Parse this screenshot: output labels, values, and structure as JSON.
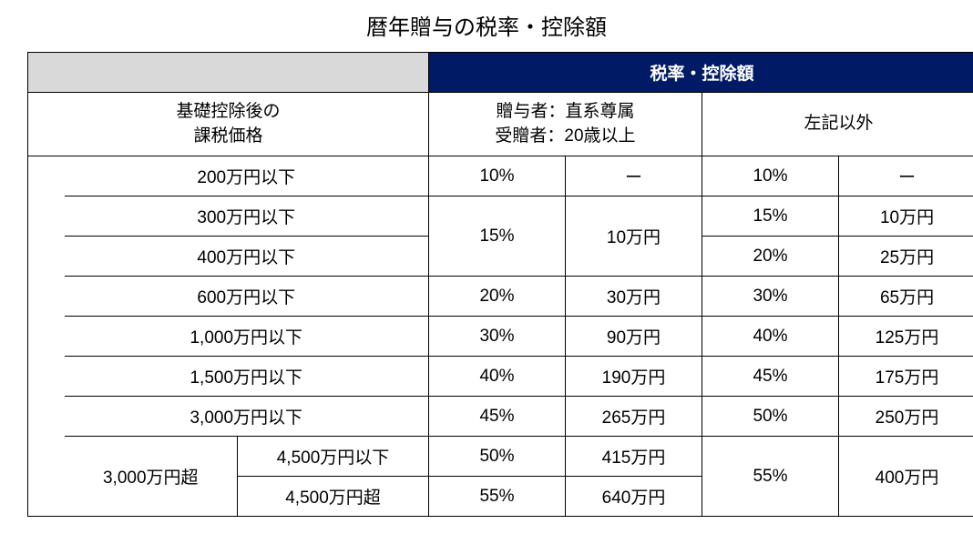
{
  "title": "暦年贈与の税率・控除額",
  "colors": {
    "header_bg": "#001a66",
    "header_fg": "#ffffff",
    "blank_bg": "#d9d9d9",
    "border": "#000000",
    "text": "#000000",
    "background": "#ffffff"
  },
  "typography": {
    "title_fontsize": 24,
    "cell_fontsize": 19,
    "font_family": "Hiragino Kaku Gothic ProN, Yu Gothic, Meiryo, sans-serif"
  },
  "headers": {
    "main_right": "税率・控除額",
    "left_sub_line1": "基礎控除後の",
    "left_sub_line2": "課税価格",
    "mid_sub_line1": "贈与者：直系尊属",
    "mid_sub_line2": "受贈者：20歳以上",
    "right_sub": "左記以外"
  },
  "brackets": {
    "b200": "200万円以下",
    "b300": "300万円以下",
    "b400": "400万円以下",
    "b600": "600万円以下",
    "b1000": "1,000万円以下",
    "b1500": "1,500万円以下",
    "b3000": "3,000万円以下",
    "over3000": "3,000万円超",
    "b4500": "4,500万円以下",
    "over4500": "4,500万円超"
  },
  "dash": "ー",
  "direct": {
    "r200": "10%",
    "d200": "ー",
    "r300_400": "15%",
    "d300_400": "10万円",
    "r600": "20%",
    "d600": "30万円",
    "r1000": "30%",
    "d1000": "90万円",
    "r1500": "40%",
    "d1500": "190万円",
    "r3000": "45%",
    "d3000": "265万円",
    "r4500": "50%",
    "d4500": "415万円",
    "rOver4500": "55%",
    "dOver4500": "640万円"
  },
  "other": {
    "r200": "10%",
    "d200": "ー",
    "r300": "15%",
    "d300": "10万円",
    "r400": "20%",
    "d400": "25万円",
    "r600": "30%",
    "d600": "65万円",
    "r1000": "40%",
    "d1000": "125万円",
    "r1500": "45%",
    "d1500": "175万円",
    "r3000": "50%",
    "d3000": "250万円",
    "rOver3000": "55%",
    "dOver3000": "400万円"
  }
}
